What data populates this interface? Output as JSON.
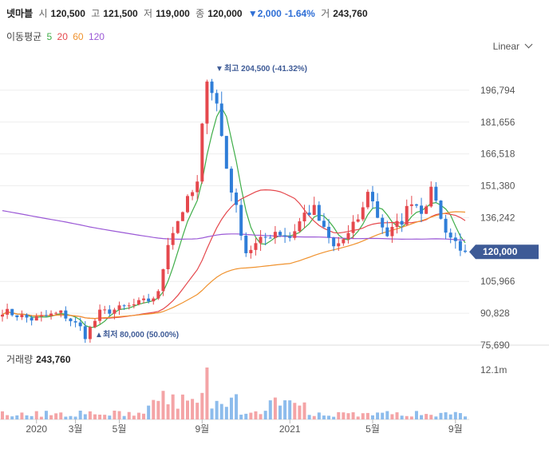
{
  "header": {
    "name": "넷마블",
    "open_label": "시",
    "open": "120,500",
    "high_label": "고",
    "high": "121,500",
    "low_label": "저",
    "low": "119,000",
    "close_label": "종",
    "close": "120,000",
    "change": "▼2,000",
    "change_pct": "-1.64%",
    "volume_label": "거",
    "volume": "243,760"
  },
  "moving_average": {
    "label": "이동평균",
    "periods": [
      {
        "label": "5",
        "color": "#3fae49"
      },
      {
        "label": "20",
        "color": "#e5484d"
      },
      {
        "label": "60",
        "color": "#f0922e"
      },
      {
        "label": "120",
        "color": "#9b59d6"
      }
    ]
  },
  "scale": {
    "selected": "Linear"
  },
  "annotations": {
    "high": "최고 204,500 (-41.32%)",
    "high_marker": "▼",
    "low": "최저 80,000 (50.00%)",
    "low_marker": "▲"
  },
  "volume_panel": {
    "label": "거래량",
    "value": "243,760",
    "tick": "12.1m"
  },
  "colors": {
    "up": "#e5484d",
    "down": "#2f7ed8",
    "price_tag": "#3d5a96",
    "grid": "#eeeeee"
  },
  "chart_data": {
    "type": "candlestick",
    "y_ticks": [
      {
        "value": 196794,
        "label": "196,794"
      },
      {
        "value": 181656,
        "label": "181,656"
      },
      {
        "value": 166518,
        "label": "166,518"
      },
      {
        "value": 151380,
        "label": "151,380"
      },
      {
        "value": 136242,
        "label": "136,242"
      },
      {
        "value": 105966,
        "label": "105,966"
      },
      {
        "value": 90828,
        "label": "90,828"
      },
      {
        "value": 75690,
        "label": "75,690"
      }
    ],
    "current_price": {
      "value": 120000,
      "label": "120,000"
    },
    "ylim": [
      75690,
      211932
    ],
    "x_labels": [
      {
        "label": "2020",
        "week": 7
      },
      {
        "label": "3월",
        "week": 15
      },
      {
        "label": "5월",
        "week": 24
      },
      {
        "label": "9월",
        "week": 41
      },
      {
        "label": "2021",
        "week": 59
      },
      {
        "label": "5월",
        "week": 76
      },
      {
        "label": "9월",
        "week": 93
      }
    ],
    "key_points": [
      [
        0,
        92000
      ],
      [
        6,
        88000
      ],
      [
        12,
        91000
      ],
      [
        16,
        84000
      ],
      [
        17,
        80000
      ],
      [
        20,
        91000
      ],
      [
        26,
        94000
      ],
      [
        30,
        97000
      ],
      [
        32,
        100000
      ],
      [
        34,
        125000
      ],
      [
        37,
        140000
      ],
      [
        40,
        152000
      ],
      [
        42,
        204500
      ],
      [
        44,
        190000
      ],
      [
        46,
        160000
      ],
      [
        48,
        140000
      ],
      [
        50,
        120000
      ],
      [
        53,
        125000
      ],
      [
        56,
        130000
      ],
      [
        59,
        127000
      ],
      [
        62,
        138000
      ],
      [
        64,
        140000
      ],
      [
        66,
        130000
      ],
      [
        68,
        122000
      ],
      [
        71,
        128000
      ],
      [
        74,
        140000
      ],
      [
        75,
        150000
      ],
      [
        77,
        137000
      ],
      [
        79,
        128000
      ],
      [
        82,
        135000
      ],
      [
        84,
        145000
      ],
      [
        86,
        140000
      ],
      [
        88,
        148000
      ],
      [
        89,
        146000
      ],
      [
        90,
        135000
      ],
      [
        92,
        127000
      ],
      [
        95,
        120000
      ]
    ],
    "weeks": 96,
    "volume_max": 12100000
  }
}
